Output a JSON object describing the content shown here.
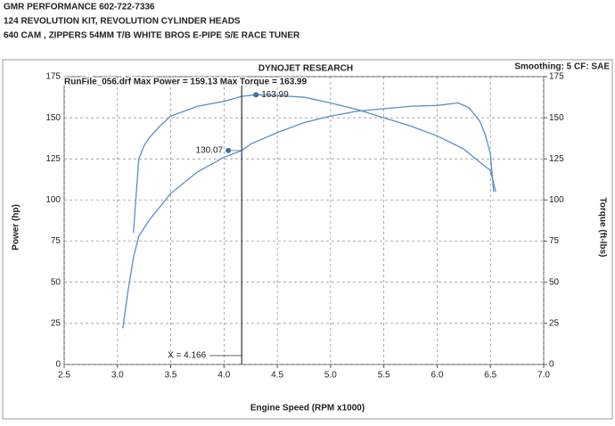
{
  "header": [
    "GMR PERFORMANCE  602-722-7336",
    "124 REVOLUTION KIT, REVOLUTION CYLINDER HEADS",
    "640 CAM ,  ZIPPERS 54MM T/B  WHITE BROS E-PIPE    S/E  RACE TUNER"
  ],
  "chart_data": {
    "type": "line",
    "title": "DYNOJET RESEARCH",
    "subtitle": "Smoothing: 5  CF: SAE",
    "run_info": "RunFile_056.drf Max Power = 159.13 Max Torque = 163.99",
    "x_label": "Engine Speed (RPM x1000)",
    "y_label": "Power (hp)",
    "y2_label": "Torque (ft-lbs)",
    "xlim": [
      2.5,
      7.0
    ],
    "ylim": [
      0,
      175
    ],
    "y2lim": [
      0,
      175
    ],
    "xticks": [
      2.5,
      {
        "value": 3,
        "label": "3.0"
      },
      3.5,
      {
        "value": 4,
        "label": "4.0"
      },
      4.5,
      {
        "value": 5,
        "label": "5.0"
      },
      5.5,
      {
        "value": 6,
        "label": "6.0"
      },
      6.5,
      {
        "value": 7,
        "label": "7.0"
      }
    ],
    "yticks": [
      0,
      25,
      50,
      75,
      100,
      125,
      150,
      175
    ],
    "y2ticks": [
      0,
      25,
      50,
      75,
      100,
      125,
      150,
      175
    ],
    "grid": true,
    "series": [
      {
        "color": "#5b8ec6",
        "x": [
          3.05,
          3.1,
          3.15,
          3.2,
          3.3,
          3.4,
          3.5,
          3.75,
          4.0,
          4.166,
          4.25,
          4.5,
          4.75,
          5.0,
          5.25,
          5.5,
          5.75,
          6.0,
          6.2,
          6.3,
          6.4,
          6.45,
          6.5,
          6.53
        ],
        "values": [
          22,
          45,
          65,
          78,
          88,
          96,
          104,
          117,
          126,
          130.07,
          134,
          141,
          147,
          151,
          154,
          155.5,
          157,
          157.5,
          159,
          156,
          148,
          140,
          128,
          105
        ]
      },
      {
        "color": "#5b8ec6",
        "axis": "y2",
        "x": [
          3.15,
          3.2,
          3.25,
          3.3,
          3.4,
          3.5,
          3.75,
          4.0,
          4.166,
          4.3,
          4.5,
          4.75,
          5.0,
          5.25,
          5.5,
          5.75,
          6.0,
          6.25,
          6.4,
          6.5,
          6.55
        ],
        "values": [
          80,
          125,
          133,
          138,
          145,
          151,
          157,
          160,
          163,
          163.99,
          163.5,
          162.5,
          159,
          155,
          150,
          145,
          139,
          131,
          123,
          118,
          105
        ]
      }
    ],
    "annotations": [
      {
        "value": 130.07,
        "x": 4.04
      },
      {
        "value": 163.99,
        "x": 4.3,
        "axis": "y2"
      }
    ],
    "cursor": {
      "label": "X = 4.166",
      "x": 4.166
    }
  }
}
